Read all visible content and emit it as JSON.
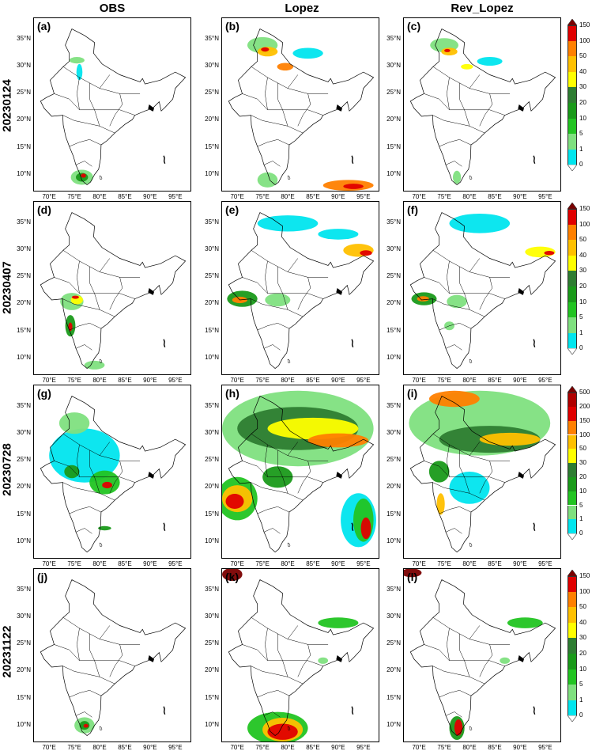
{
  "columns": [
    "OBS",
    "Lopez",
    "Rev_Lopez"
  ],
  "rows": [
    {
      "date": "20230124",
      "labels": [
        "(a)",
        "(b)",
        "(c)"
      ]
    },
    {
      "date": "20230407",
      "labels": [
        "(d)",
        "(e)",
        "(f)"
      ]
    },
    {
      "date": "20230728",
      "labels": [
        "(g)",
        "(h)",
        "(i)"
      ]
    },
    {
      "date": "20231122",
      "labels": [
        "(j)",
        "(k)",
        "(l)"
      ]
    }
  ],
  "lat_ticks": [
    "35°N",
    "30°N",
    "25°N",
    "20°N",
    "15°N",
    "10°N"
  ],
  "lon_ticks": [
    "70°E",
    "75°E",
    "80°E",
    "85°E",
    "90°E",
    "95°E"
  ],
  "colorbars": [
    {
      "levels": [
        "150",
        "100",
        "50",
        "40",
        "30",
        "20",
        "10",
        "5",
        "1",
        "0"
      ]
    },
    {
      "levels": [
        "150",
        "100",
        "50",
        "40",
        "30",
        "20",
        "10",
        "5",
        "1",
        "0"
      ]
    },
    {
      "levels": [
        "500",
        "200",
        "150",
        "100",
        "50",
        "30",
        "20",
        "10",
        "5",
        "1",
        "0"
      ]
    },
    {
      "levels": [
        "150",
        "100",
        "50",
        "40",
        "30",
        "20",
        "10",
        "5",
        "1",
        "0"
      ]
    }
  ],
  "colors": {
    "c1": "#00e5ee",
    "c5": "#7fe07f",
    "c10": "#22c422",
    "c20": "#1a9a1a",
    "c30": "#2e7d32",
    "c40": "#ffff00",
    "c50": "#ffc000",
    "c100": "#ff8000",
    "c150": "#e00000",
    "c200": "#b00000",
    "top": "#7a0000"
  }
}
